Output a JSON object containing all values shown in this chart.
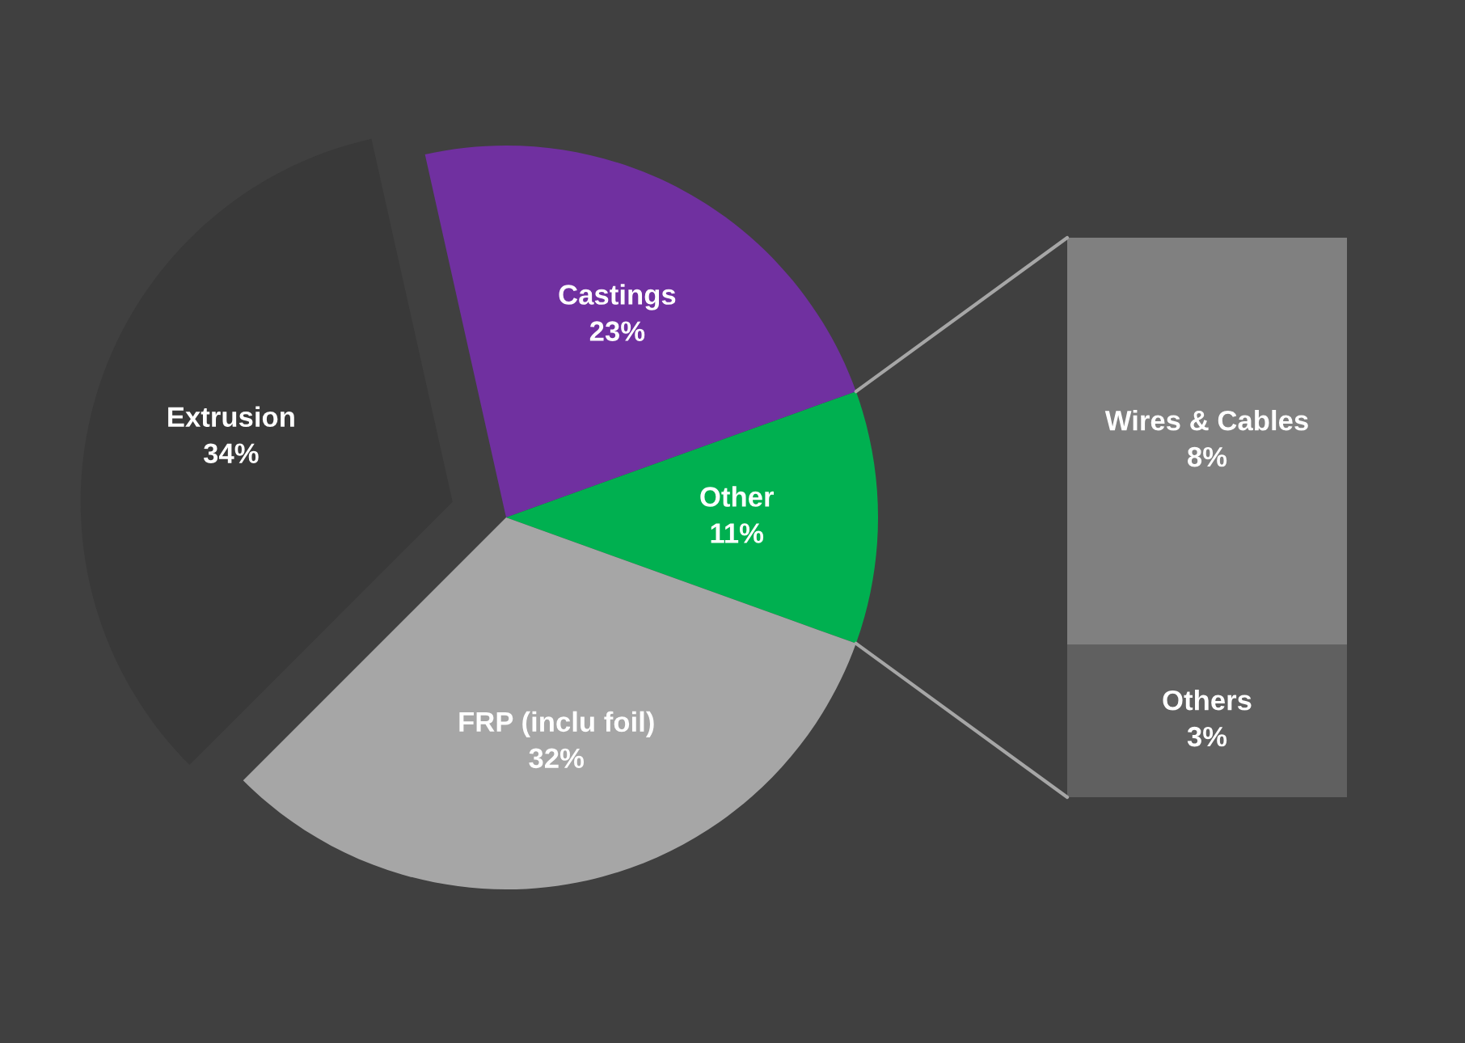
{
  "chart_data": [
    {
      "type": "pie",
      "categories": [
        "Castings",
        "Other",
        "FRP (inclu foil)",
        "Extrusion"
      ],
      "values": [
        23,
        11,
        32,
        34
      ],
      "colors": [
        "#7030a0",
        "#00b050",
        "#a6a6a6",
        "#393939"
      ],
      "value_labels": [
        "23%",
        "11%",
        "32%",
        "34%"
      ]
    },
    {
      "type": "bar",
      "stacked": true,
      "categories": [
        null
      ],
      "series": [
        {
          "name": "Others",
          "color": "#606060",
          "values": [
            3
          ],
          "value_labels": [
            "3%"
          ]
        },
        {
          "name": "Wires & Cables",
          "color": "#808080",
          "values": [
            8
          ],
          "value_labels": [
            "8%"
          ]
        }
      ]
    }
  ]
}
